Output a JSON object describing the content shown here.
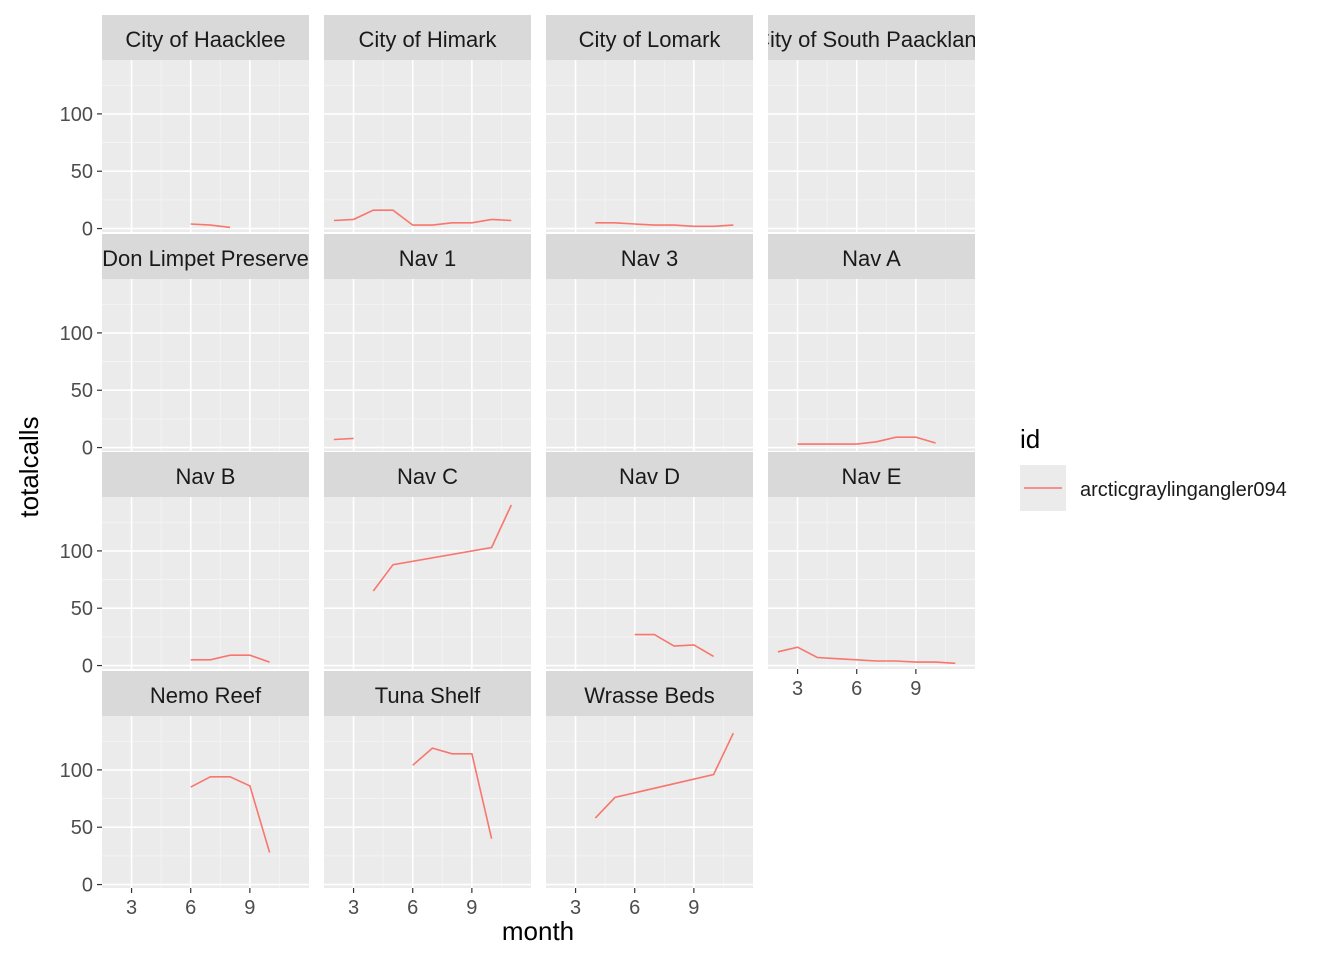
{
  "chart_data": {
    "type": "line",
    "facet_layout": "4x4 grid, free",
    "xlabel": "month",
    "ylabel": "totalcalls",
    "xlim": [
      1.5,
      12
    ],
    "ylim": [
      -3,
      147
    ],
    "x_ticks": [
      3,
      6,
      9
    ],
    "y_ticks": [
      0,
      50,
      100
    ],
    "x_minor_ticks": [
      4.5,
      7.5,
      10.5
    ],
    "y_minor_ticks": [
      25,
      75,
      125
    ],
    "legend": {
      "title": "id",
      "position": "right",
      "entries": [
        {
          "label": "arcticgraylingangler094",
          "color": "#F8766D"
        }
      ]
    },
    "series_color": "#F8766D",
    "panels": [
      {
        "label": "City of Haacklee",
        "x": [
          6,
          7,
          8
        ],
        "y": [
          4,
          3,
          1
        ]
      },
      {
        "label": "City of Himark",
        "x": [
          2,
          3,
          4,
          5,
          6,
          7,
          8,
          9,
          10,
          11
        ],
        "y": [
          7,
          8,
          16,
          16,
          3,
          3,
          5,
          5,
          8,
          7
        ]
      },
      {
        "label": "City of Lomark",
        "x": [
          4,
          5,
          6,
          7,
          8,
          9,
          10,
          11
        ],
        "y": [
          5,
          5,
          4,
          3,
          3,
          2,
          2,
          3
        ]
      },
      {
        "label": "City of South Paackland",
        "x": [],
        "y": []
      },
      {
        "label": "Don Limpet Preserve",
        "x": [],
        "y": []
      },
      {
        "label": "Nav 1",
        "x": [
          2,
          3
        ],
        "y": [
          7,
          8
        ]
      },
      {
        "label": "Nav 3",
        "x": [],
        "y": []
      },
      {
        "label": "Nav A",
        "x": [
          3,
          4,
          5,
          6,
          7,
          8,
          9,
          10
        ],
        "y": [
          3,
          3,
          3,
          3,
          5,
          9,
          9,
          4
        ]
      },
      {
        "label": "Nav B",
        "x": [
          6,
          7,
          8,
          9,
          10
        ],
        "y": [
          5,
          5,
          9,
          9,
          3
        ]
      },
      {
        "label": "Nav C",
        "x": [
          4,
          5,
          10,
          11
        ],
        "y": [
          65,
          88,
          103,
          140
        ]
      },
      {
        "label": "Nav D",
        "x": [
          6,
          7,
          8,
          9,
          10
        ],
        "y": [
          27,
          27,
          17,
          18,
          8
        ]
      },
      {
        "label": "Nav E",
        "x": [
          2,
          3,
          4,
          5,
          6,
          7,
          8,
          9,
          10,
          11
        ],
        "y": [
          12,
          16,
          7,
          6,
          5,
          4,
          4,
          3,
          3,
          2
        ]
      },
      {
        "label": "Nemo Reef",
        "x": [
          6,
          7,
          8,
          9,
          10
        ],
        "y": [
          85,
          94,
          94,
          86,
          28
        ]
      },
      {
        "label": "Tuna Shelf",
        "x": [
          6,
          7,
          8,
          9,
          10
        ],
        "y": [
          104,
          119,
          114,
          114,
          40
        ]
      },
      {
        "label": "Wrasse Beds",
        "x": [
          4,
          5,
          10,
          11
        ],
        "y": [
          58,
          76,
          96,
          132
        ]
      }
    ]
  }
}
